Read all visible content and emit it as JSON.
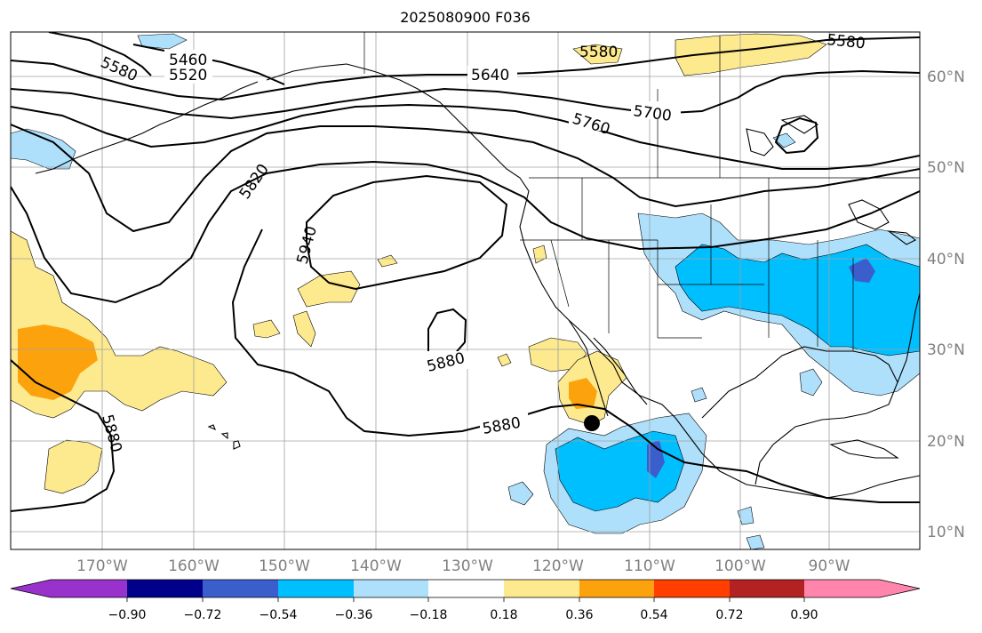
{
  "title": "2025080900 F036",
  "map": {
    "longitude_labels": [
      "170°W",
      "160°W",
      "150°W",
      "140°W",
      "130°W",
      "120°W",
      "110°W",
      "100°W",
      "90°W"
    ],
    "latitude_labels": [
      "60°N",
      "50°N",
      "40°N",
      "30°N",
      "20°N",
      "10°N"
    ],
    "contour_labels": [
      "5460",
      "5520",
      "5580",
      "5580",
      "5580",
      "5640",
      "5700",
      "5760",
      "5820",
      "5940",
      "5880",
      "5880",
      "5880"
    ],
    "marker": "storm-position-dot",
    "colors": {
      "land_outline": "#000000",
      "grid": "#a0a0a0",
      "contour": "#000000",
      "light_blue": "#aee0fb",
      "blue": "#00bfff",
      "mid_blue": "#3a5fcd",
      "yellow": "#fde98e",
      "orange": "#fca20d"
    }
  },
  "colorbar": {
    "tick_labels": [
      "−0.90",
      "−0.72",
      "−0.54",
      "−0.36",
      "−0.18",
      "0.18",
      "0.36",
      "0.54",
      "0.72",
      "0.90"
    ],
    "colors": [
      "#9932cc",
      "#00008b",
      "#3a5fcd",
      "#00bfff",
      "#aee0fb",
      "#ffffff",
      "#fde98e",
      "#fca20d",
      "#ff3e00",
      "#b22222",
      "#ff85ad"
    ]
  }
}
